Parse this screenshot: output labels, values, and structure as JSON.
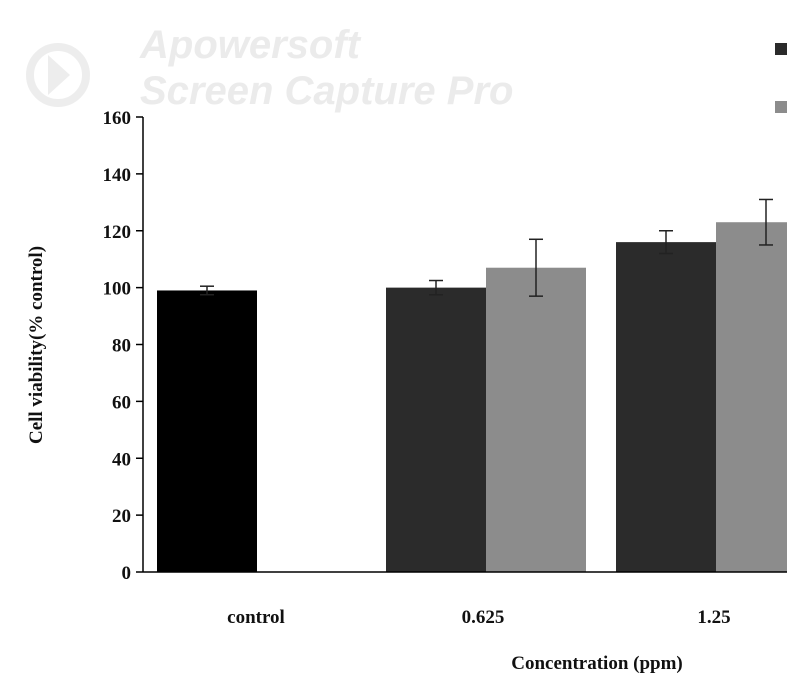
{
  "watermark": {
    "line1": "Apowersoft",
    "line2": "Screen Capture Pro"
  },
  "chart_data": {
    "type": "bar",
    "title": "",
    "xlabel": "Concentration  (ppm)",
    "ylabel": "Cell viability(% control)",
    "ylim": [
      0,
      160
    ],
    "yticks": [
      0,
      20,
      40,
      60,
      80,
      100,
      120,
      140,
      160
    ],
    "categories": [
      "control",
      "0.625",
      "1.25"
    ],
    "series": [
      {
        "color": "#000000",
        "values": [
          99,
          null,
          null
        ],
        "errors": [
          1.5,
          null,
          null
        ]
      },
      {
        "color": "#2b2b2b",
        "values": [
          null,
          100,
          116
        ],
        "errors": [
          null,
          2.5,
          4
        ]
      },
      {
        "color": "#8c8c8c",
        "values": [
          null,
          107,
          123
        ],
        "errors": [
          null,
          10,
          8
        ]
      }
    ],
    "legend": {
      "placement": "top-right",
      "entries": [
        {
          "color": "#2b2b2b"
        },
        {
          "color": "#8c8c8c"
        }
      ]
    }
  }
}
